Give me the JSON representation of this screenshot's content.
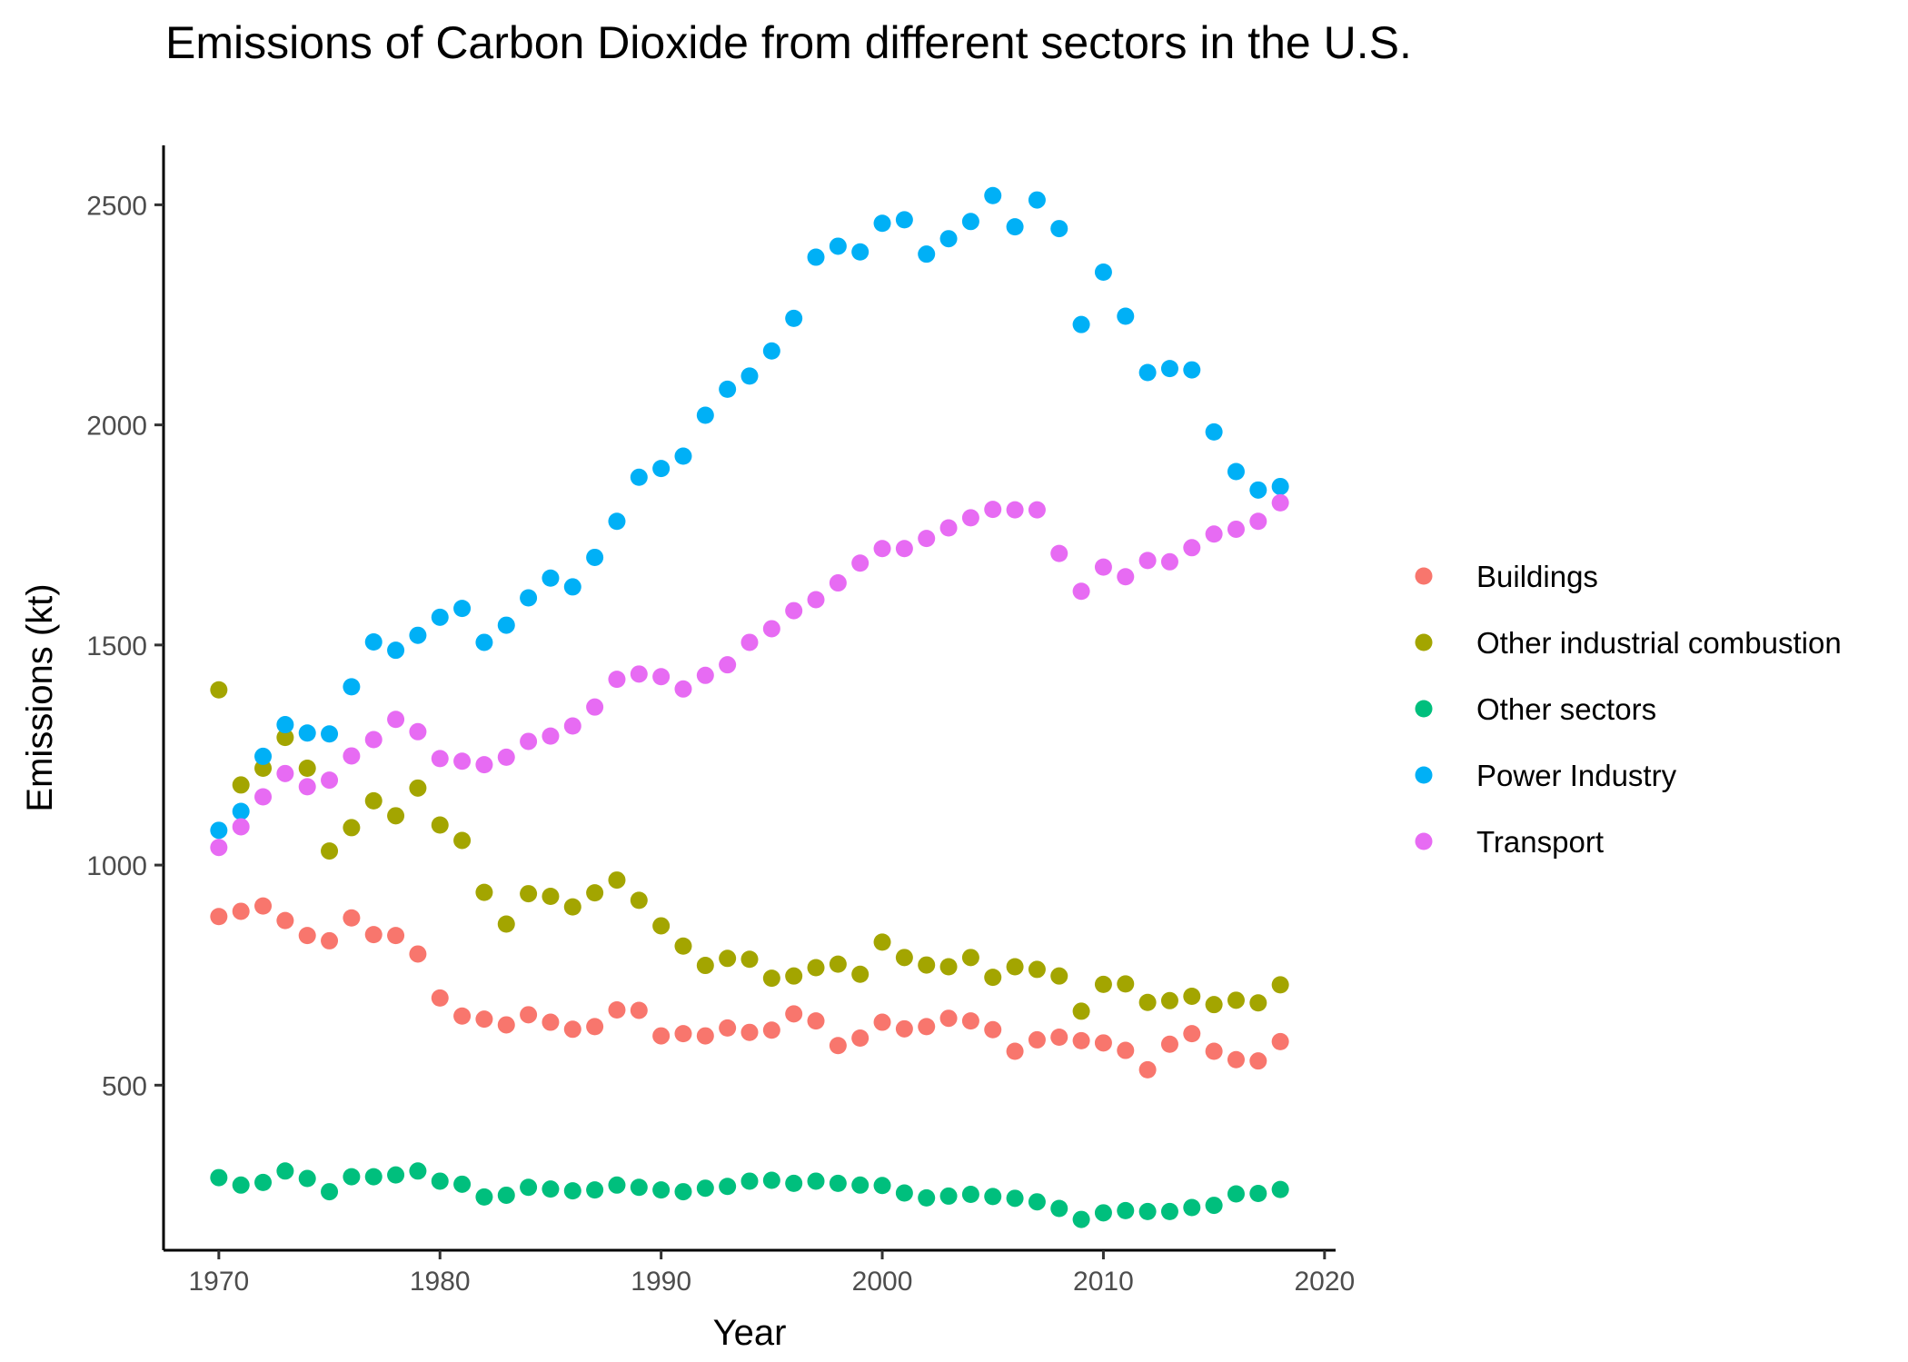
{
  "chart_data": {
    "type": "scatter",
    "title": "Emissions of Carbon Dioxide from different sectors in the U.S.",
    "xlabel": "Year",
    "ylabel": "Emissions (kt)",
    "xlim": [
      1967.5,
      2020.5
    ],
    "ylim": [
      125,
      2635
    ],
    "xticks": [
      1970,
      1980,
      1990,
      2000,
      2010,
      2020
    ],
    "yticks": [
      500,
      1000,
      1500,
      2000,
      2500
    ],
    "grid": false,
    "legend_position": "right",
    "x": [
      1970,
      1971,
      1972,
      1973,
      1974,
      1975,
      1976,
      1977,
      1978,
      1979,
      1980,
      1981,
      1982,
      1983,
      1984,
      1985,
      1986,
      1987,
      1988,
      1989,
      1990,
      1991,
      1992,
      1993,
      1994,
      1995,
      1996,
      1997,
      1998,
      1999,
      2000,
      2001,
      2002,
      2003,
      2004,
      2005,
      2006,
      2007,
      2008,
      2009,
      2010,
      2011,
      2012,
      2013,
      2014,
      2015,
      2016,
      2017,
      2018
    ],
    "series": [
      {
        "name": "Buildings",
        "color": "#F8766D",
        "values": [
          883,
          895,
          907,
          874,
          840,
          828,
          880,
          842,
          840,
          798,
          698,
          657,
          650,
          637,
          660,
          643,
          627,
          633,
          671,
          670,
          612,
          617,
          612,
          630,
          620,
          625,
          662,
          646,
          590,
          607,
          643,
          628,
          633,
          652,
          646,
          626,
          577,
          603,
          609,
          601,
          596,
          579,
          535,
          593,
          617,
          577,
          558,
          555,
          599
        ]
      },
      {
        "name": "Other industrial combustion",
        "color": "#A3A500",
        "values": [
          1398,
          1182,
          1220,
          1290,
          1220,
          1032,
          1085,
          1146,
          1112,
          1175,
          1091,
          1056,
          938,
          866,
          935,
          929,
          905,
          937,
          966,
          920,
          862,
          816,
          772,
          788,
          786,
          743,
          748,
          767,
          775,
          752,
          825,
          790,
          773,
          769,
          790,
          745,
          769,
          763,
          748,
          668,
          729,
          730,
          688,
          692,
          702,
          683,
          693,
          687,
          728
        ]
      },
      {
        "name": "Other sectors",
        "color": "#00BF7D",
        "values": [
          290,
          273,
          279,
          305,
          288,
          258,
          292,
          292,
          296,
          305,
          282,
          275,
          246,
          250,
          268,
          264,
          260,
          262,
          273,
          268,
          262,
          258,
          266,
          270,
          282,
          284,
          277,
          282,
          277,
          273,
          272,
          255,
          244,
          248,
          252,
          247,
          243,
          235,
          220,
          195,
          210,
          215,
          213,
          213,
          222,
          227,
          253,
          254,
          263
        ]
      },
      {
        "name": "Power Industry",
        "color": "#00B0F6",
        "values": [
          1079,
          1122,
          1247,
          1319,
          1300,
          1298,
          1405,
          1507,
          1488,
          1522,
          1563,
          1583,
          1506,
          1545,
          1607,
          1652,
          1632,
          1699,
          1781,
          1881,
          1901,
          1929,
          2022,
          2081,
          2111,
          2168,
          2242,
          2381,
          2406,
          2393,
          2458,
          2466,
          2388,
          2423,
          2462,
          2521,
          2450,
          2511,
          2446,
          2228,
          2347,
          2247,
          2119,
          2128,
          2125,
          1984,
          1894,
          1852,
          1860
        ]
      },
      {
        "name": "Transport",
        "color": "#E76BF3",
        "values": [
          1040,
          1087,
          1155,
          1208,
          1178,
          1193,
          1248,
          1285,
          1331,
          1303,
          1242,
          1236,
          1228,
          1245,
          1281,
          1293,
          1316,
          1359,
          1422,
          1434,
          1428,
          1400,
          1431,
          1455,
          1506,
          1537,
          1578,
          1603,
          1641,
          1686,
          1719,
          1719,
          1742,
          1766,
          1789,
          1808,
          1807,
          1807,
          1708,
          1622,
          1677,
          1655,
          1692,
          1689,
          1721,
          1752,
          1763,
          1781,
          1823
        ]
      }
    ]
  }
}
